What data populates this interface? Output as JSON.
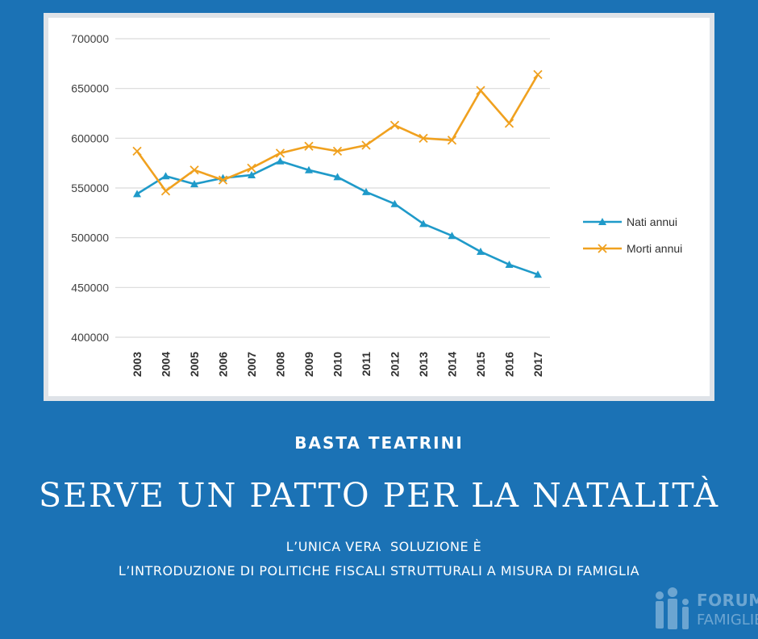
{
  "chart_data": {
    "type": "line",
    "categories": [
      "2003",
      "2004",
      "2005",
      "2006",
      "2007",
      "2008",
      "2009",
      "2010",
      "2011",
      "2012",
      "2013",
      "2014",
      "2015",
      "2016",
      "2017"
    ],
    "series": [
      {
        "name": "Nati annui",
        "color": "#1f9ac9",
        "marker": "triangle",
        "values": [
          544000,
          562000,
          554000,
          560000,
          563000,
          577000,
          568000,
          561000,
          546000,
          534000,
          514000,
          502000,
          486000,
          473000,
          463000
        ]
      },
      {
        "name": "Morti annui",
        "color": "#f0a11f",
        "marker": "x",
        "values": [
          587000,
          547000,
          568000,
          558000,
          570000,
          585000,
          592000,
          587000,
          593000,
          613000,
          600000,
          598000,
          648000,
          615000,
          664000
        ]
      }
    ],
    "ylim": [
      400000,
      700000
    ],
    "yticks": [
      "400000",
      "450000",
      "500000",
      "550000",
      "600000",
      "650000",
      "700000"
    ],
    "grid": true,
    "legend_position": "right"
  },
  "text": {
    "kicker": "BASTA TEATRINI",
    "headline": "SERVE UN PATTO PER LA NATALITÀ",
    "sub1": "L’UNICA VERA  SOLUZIONE È",
    "sub2": "L’INTRODUZIONE DI POLITICHE FISCALI STRUTTURALI A MISURA DI FAMIGLIA"
  },
  "logo": {
    "forum": "FORUM",
    "famiglie": "FAMIGLIE"
  },
  "colors": {
    "background": "#1b72b5"
  }
}
